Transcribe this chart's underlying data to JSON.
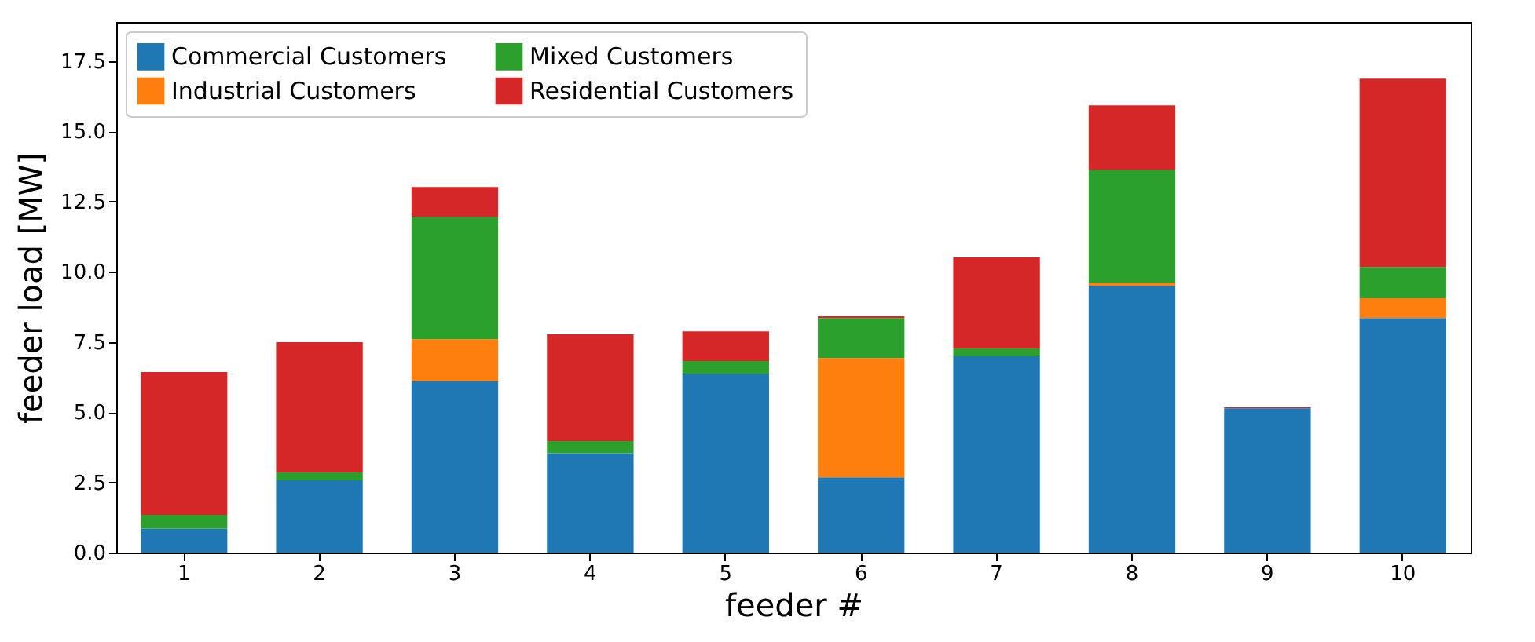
{
  "chart_data": {
    "type": "bar",
    "stacked": true,
    "xlabel": "feeder #",
    "ylabel": "feeder load [MW]",
    "categories": [
      "1",
      "2",
      "3",
      "4",
      "5",
      "6",
      "7",
      "8",
      "9",
      "10"
    ],
    "series": [
      {
        "name": "Commercial Customers",
        "color": "#1f77b4",
        "values": [
          0.85,
          2.57,
          6.11,
          3.54,
          6.37,
          2.68,
          7.0,
          9.5,
          5.14,
          8.35
        ]
      },
      {
        "name": "Industrial Customers",
        "color": "#ff7f0e",
        "values": [
          0,
          0,
          1.49,
          0,
          0,
          4.25,
          0,
          0.11,
          0,
          0.71
        ]
      },
      {
        "name": "Mixed Customers",
        "color": "#2ca02c",
        "values": [
          0.49,
          0.28,
          4.36,
          0.43,
          0.45,
          1.42,
          0.27,
          4.03,
          0,
          1.11
        ]
      },
      {
        "name": "Residential Customers",
        "color": "#d62728",
        "values": [
          5.09,
          4.64,
          1.06,
          3.8,
          1.06,
          0.07,
          3.24,
          2.29,
          0.03,
          6.71
        ]
      }
    ],
    "ylim": [
      0,
      18.9
    ],
    "yticks": [
      {
        "value": 0,
        "label": "0.0"
      },
      2.5,
      {
        "value": 5,
        "label": "5.0"
      },
      7.5,
      {
        "value": 10,
        "label": "10.0"
      },
      12.5,
      {
        "value": 15,
        "label": "15.0"
      },
      17.5
    ],
    "grid": false,
    "legend": "top left"
  }
}
